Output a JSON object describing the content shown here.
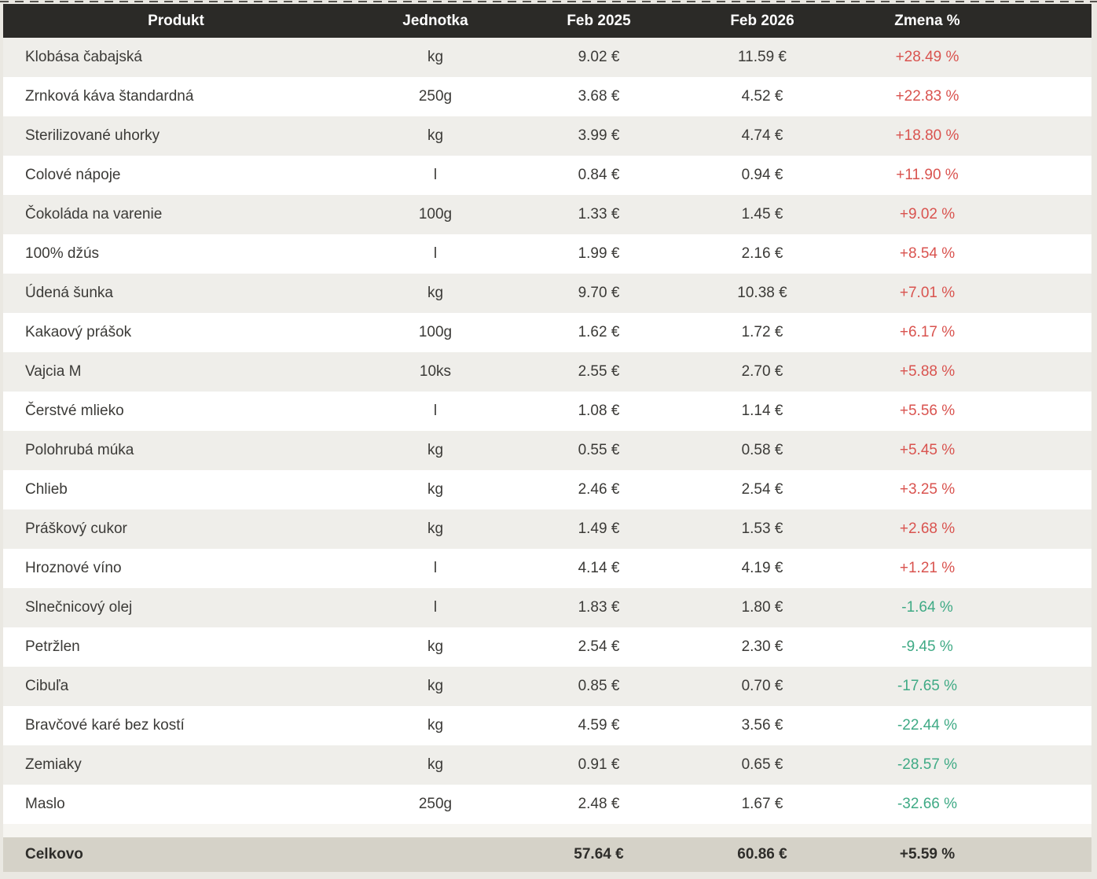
{
  "chart_data": {
    "type": "table",
    "columns": [
      "Produkt",
      "Jednotka",
      "Feb 2025",
      "Feb 2026",
      "Zmena %"
    ],
    "rows": [
      {
        "product": "Klobása čabajská",
        "unit": "kg",
        "price_feb_2025": "9.02 €",
        "price_feb_2026": "11.59 €",
        "change_percent": "+28.49 %"
      },
      {
        "product": "Zrnková káva štandardná",
        "unit": "250g",
        "price_feb_2025": "3.68 €",
        "price_feb_2026": "4.52 €",
        "change_percent": "+22.83 %"
      },
      {
        "product": "Sterilizované uhorky",
        "unit": "kg",
        "price_feb_2025": "3.99 €",
        "price_feb_2026": "4.74 €",
        "change_percent": "+18.80 %"
      },
      {
        "product": "Colové nápoje",
        "unit": "l",
        "price_feb_2025": "0.84 €",
        "price_feb_2026": "0.94 €",
        "change_percent": "+11.90 %"
      },
      {
        "product": "Čokoláda na varenie",
        "unit": "100g",
        "price_feb_2025": "1.33 €",
        "price_feb_2026": "1.45 €",
        "change_percent": "+9.02 %"
      },
      {
        "product": "100% džús",
        "unit": "l",
        "price_feb_2025": "1.99 €",
        "price_feb_2026": "2.16 €",
        "change_percent": "+8.54 %"
      },
      {
        "product": "Údená šunka",
        "unit": "kg",
        "price_feb_2025": "9.70 €",
        "price_feb_2026": "10.38 €",
        "change_percent": "+7.01 %"
      },
      {
        "product": "Kakaový prášok",
        "unit": "100g",
        "price_feb_2025": "1.62 €",
        "price_feb_2026": "1.72 €",
        "change_percent": "+6.17 %"
      },
      {
        "product": "Vajcia M",
        "unit": "10ks",
        "price_feb_2025": "2.55 €",
        "price_feb_2026": "2.70 €",
        "change_percent": "+5.88 %"
      },
      {
        "product": "Čerstvé mlieko",
        "unit": "l",
        "price_feb_2025": "1.08 €",
        "price_feb_2026": "1.14 €",
        "change_percent": "+5.56 %"
      },
      {
        "product": "Polohrubá múka",
        "unit": "kg",
        "price_feb_2025": "0.55 €",
        "price_feb_2026": "0.58 €",
        "change_percent": "+5.45 %"
      },
      {
        "product": "Chlieb",
        "unit": "kg",
        "price_feb_2025": "2.46 €",
        "price_feb_2026": "2.54 €",
        "change_percent": "+3.25 %"
      },
      {
        "product": "Práškový cukor",
        "unit": "kg",
        "price_feb_2025": "1.49 €",
        "price_feb_2026": "1.53 €",
        "change_percent": "+2.68 %"
      },
      {
        "product": "Hroznové víno",
        "unit": "l",
        "price_feb_2025": "4.14 €",
        "price_feb_2026": "4.19 €",
        "change_percent": "+1.21 %"
      },
      {
        "product": "Slnečnicový olej",
        "unit": "l",
        "price_feb_2025": "1.83 €",
        "price_feb_2026": "1.80 €",
        "change_percent": "-1.64 %"
      },
      {
        "product": "Petržlen",
        "unit": "kg",
        "price_feb_2025": "2.54 €",
        "price_feb_2026": "2.30 €",
        "change_percent": "-9.45 %"
      },
      {
        "product": "Cibuľa",
        "unit": "kg",
        "price_feb_2025": "0.85 €",
        "price_feb_2026": "0.70 €",
        "change_percent": "-17.65 %"
      },
      {
        "product": "Bravčové karé bez kostí",
        "unit": "kg",
        "price_feb_2025": "4.59 €",
        "price_feb_2026": "3.56 €",
        "change_percent": "-22.44 %"
      },
      {
        "product": "Zemiaky",
        "unit": "kg",
        "price_feb_2025": "0.91 €",
        "price_feb_2026": "0.65 €",
        "change_percent": "-28.57 %"
      },
      {
        "product": "Maslo",
        "unit": "250g",
        "price_feb_2025": "2.48 €",
        "price_feb_2026": "1.67 €",
        "change_percent": "-32.66 %"
      }
    ],
    "footer": {
      "label": "Celkovo",
      "unit": "",
      "price_feb_2025": "57.64 €",
      "price_feb_2026": "60.86 €",
      "change_percent": "+5.59 %"
    },
    "colors": {
      "header_bg": "#2b2a27",
      "header_text": "#ffffff",
      "row_odd_bg": "#efeeea",
      "row_even_bg": "#ffffff",
      "footer_bg": "#d5d2c8",
      "increase_text": "#d9534f",
      "decrease_text": "#3faa85"
    }
  }
}
